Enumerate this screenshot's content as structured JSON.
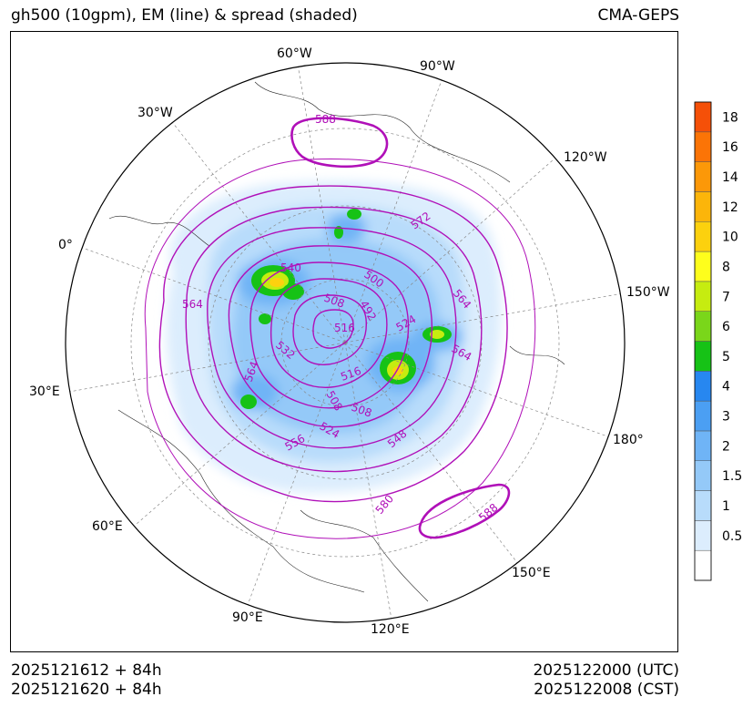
{
  "header": {
    "title": "gh500 (10gpm), EM (line) & spread (shaded)",
    "source": "CMA-GEPS"
  },
  "footer": {
    "init_utc": "2025121612 + 84h",
    "init_cst": "2025121620 + 84h",
    "valid_utc": "2025122000 (UTC)",
    "valid_cst": "2025122008 (CST)"
  },
  "map": {
    "projection": "north polar stereographic",
    "longitude_labels": [
      "60°W",
      "90°W",
      "30°W",
      "120°W",
      "0°",
      "150°W",
      "30°E",
      "180°",
      "60°E",
      "150°E",
      "90°E",
      "120°E"
    ],
    "contour_labels": [
      "588",
      "572",
      "540",
      "500",
      "564",
      "508",
      "492",
      "516",
      "524",
      "564",
      "532",
      "564",
      "516",
      "564",
      "508",
      "508",
      "524",
      "548",
      "556",
      "580",
      "588"
    ],
    "line_color": "#b010b8"
  },
  "colorbar": {
    "levels": [
      "0.5",
      "1",
      "1.5",
      "2",
      "3",
      "4",
      "5",
      "6",
      "7",
      "8",
      "10",
      "12",
      "14",
      "16",
      "18"
    ],
    "colors": [
      "#ffffff",
      "#dcedfd",
      "#b8dcfb",
      "#94c9f8",
      "#6fb4f6",
      "#4b9ff3",
      "#2787f0",
      "#16c216",
      "#7ad61a",
      "#c6ec10",
      "#fefe1c",
      "#fcd10e",
      "#fcb50a",
      "#fc9808",
      "#fb7406",
      "#f55008"
    ]
  }
}
